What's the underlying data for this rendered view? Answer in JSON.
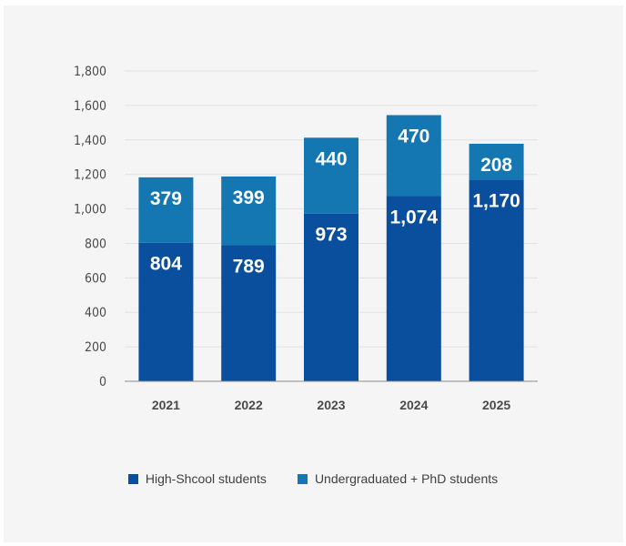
{
  "chart_data": {
    "type": "bar",
    "stacked": true,
    "categories": [
      "2021",
      "2022",
      "2023",
      "2024",
      "2025"
    ],
    "series": [
      {
        "name": "High-Shcool students",
        "values": [
          804,
          789,
          973,
          1074,
          1170
        ],
        "labels": [
          "804",
          "789",
          "973",
          "1,074",
          "1,170"
        ],
        "color": "#0a4f9d"
      },
      {
        "name": "Undergraduated + PhD students",
        "values": [
          379,
          399,
          440,
          470,
          208
        ],
        "labels": [
          "379",
          "399",
          "440",
          "470",
          "208"
        ],
        "color": "#1477b2"
      }
    ],
    "ylim": [
      0,
      1800
    ],
    "yticks": [
      "0",
      "200",
      "400",
      "600",
      "800",
      "1,000",
      "1,200",
      "1,400",
      "1,600",
      "1,800"
    ],
    "ytick_values": [
      0,
      200,
      400,
      600,
      800,
      1000,
      1200,
      1400,
      1600,
      1800
    ],
    "grid": true,
    "legend": "bottom-center",
    "title": "",
    "xlabel": "",
    "ylabel": ""
  }
}
